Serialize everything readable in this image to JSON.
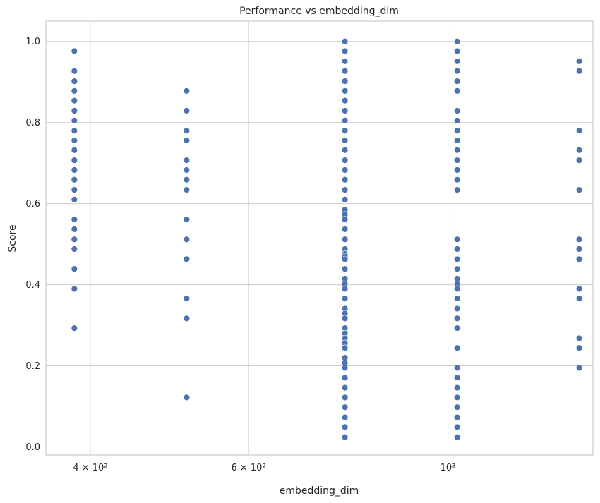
{
  "chart_data": {
    "type": "scatter",
    "title": "Performance vs embedding_dim",
    "xlabel": "embedding_dim",
    "ylabel": "Score",
    "x_scale": "log",
    "xlim": [
      357,
      1450
    ],
    "ylim": [
      -0.02,
      1.05
    ],
    "grid": true,
    "marker_color": "#4c72b0",
    "x_ticks": [
      {
        "value": 400,
        "label": "4 × 10²"
      },
      {
        "value": 600,
        "label": "6 × 10²"
      },
      {
        "value": 1000,
        "label": "10³"
      }
    ],
    "y_ticks": [
      {
        "value": 0.0,
        "label": "0.0"
      },
      {
        "value": 0.2,
        "label": "0.2"
      },
      {
        "value": 0.4,
        "label": "0.4"
      },
      {
        "value": 0.6,
        "label": "0.6"
      },
      {
        "value": 0.8,
        "label": "0.8"
      },
      {
        "value": 1.0,
        "label": "1.0"
      }
    ],
    "series": [
      {
        "x": 384,
        "y": [
          0.976,
          0.927,
          0.902,
          0.878,
          0.854,
          0.829,
          0.805,
          0.78,
          0.756,
          0.732,
          0.707,
          0.683,
          0.659,
          0.634,
          0.61,
          0.561,
          0.537,
          0.512,
          0.488,
          0.439,
          0.39,
          0.293
        ]
      },
      {
        "x": 512,
        "y": [
          0.878,
          0.829,
          0.78,
          0.756,
          0.707,
          0.683,
          0.659,
          0.634,
          0.561,
          0.512,
          0.463,
          0.366,
          0.317,
          0.122
        ]
      },
      {
        "x": 768,
        "y": [
          1.0,
          0.976,
          0.951,
          0.927,
          0.902,
          0.878,
          0.854,
          0.829,
          0.805,
          0.78,
          0.756,
          0.732,
          0.707,
          0.683,
          0.659,
          0.634,
          0.61,
          0.585,
          0.573,
          0.561,
          0.537,
          0.512,
          0.488,
          0.476,
          0.47,
          0.463,
          0.439,
          0.415,
          0.402,
          0.39,
          0.366,
          0.341,
          0.329,
          0.317,
          0.293,
          0.28,
          0.268,
          0.256,
          0.244,
          0.22,
          0.207,
          0.195,
          0.171,
          0.146,
          0.122,
          0.098,
          0.073,
          0.049,
          0.024
        ]
      },
      {
        "x": 1024,
        "y": [
          1.0,
          0.976,
          0.951,
          0.927,
          0.902,
          0.878,
          0.829,
          0.805,
          0.78,
          0.756,
          0.732,
          0.707,
          0.683,
          0.659,
          0.634,
          0.512,
          0.488,
          0.463,
          0.439,
          0.415,
          0.402,
          0.39,
          0.366,
          0.341,
          0.317,
          0.293,
          0.244,
          0.195,
          0.171,
          0.146,
          0.122,
          0.098,
          0.073,
          0.049,
          0.024
        ]
      },
      {
        "x": 1400,
        "y": [
          0.951,
          0.927,
          0.78,
          0.732,
          0.707,
          0.634,
          0.512,
          0.488,
          0.463,
          0.39,
          0.366,
          0.268,
          0.244,
          0.195
        ]
      }
    ]
  }
}
